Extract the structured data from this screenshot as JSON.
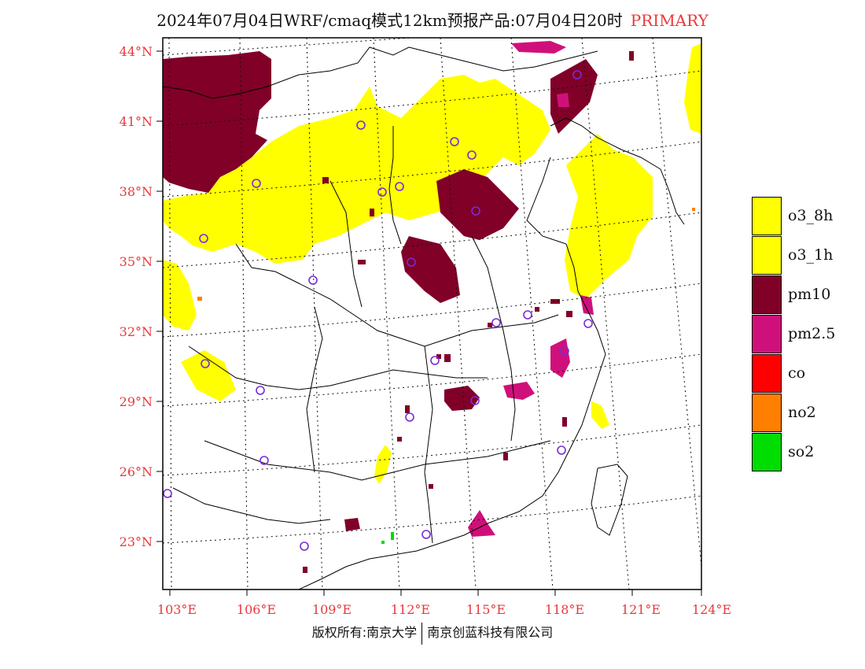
{
  "title": {
    "main": "2024年07月04日WRF/cmaq模式12km预报产品:07月04日20时",
    "tag": "PRIMARY"
  },
  "colors": {
    "o3": "#ffff00",
    "pm10": "#800028",
    "pm25": "#d0107a",
    "co": "#ff0000",
    "no2": "#ff7f00",
    "so2": "#00dd00",
    "label_red": "#e8393b",
    "station": "#7a2bd6"
  },
  "axes": {
    "lat_labels": [
      "44°N",
      "41°N",
      "38°N",
      "35°N",
      "32°N",
      "29°N",
      "26°N",
      "23°N"
    ],
    "lon_labels": [
      "103°E",
      "106°E",
      "109°E",
      "112°E",
      "115°E",
      "118°E",
      "121°E",
      "124°E"
    ]
  },
  "legend": [
    {
      "label": "o3_8h",
      "color": "#ffff00"
    },
    {
      "label": "o3_1h",
      "color": "#ffff00"
    },
    {
      "label": "pm10",
      "color": "#800028"
    },
    {
      "label": "pm2.5",
      "color": "#d0107a"
    },
    {
      "label": "co",
      "color": "#ff0000"
    },
    {
      "label": "no2",
      "color": "#ff7f00"
    },
    {
      "label": "so2",
      "color": "#00dd00"
    }
  ],
  "footer": {
    "left": "版权所有:南京大学",
    "right": "南京创蓝科技有限公司"
  }
}
